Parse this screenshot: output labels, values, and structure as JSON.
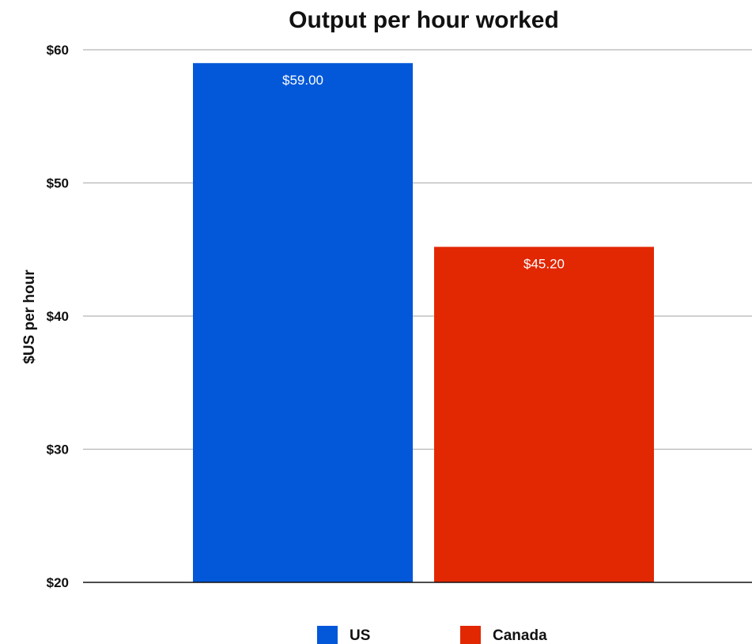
{
  "chart_data": {
    "type": "bar",
    "title": "Output per hour worked",
    "ylabel": "$US per hour",
    "xlabel": "",
    "ylim": [
      20,
      60
    ],
    "yticks": [
      20,
      30,
      40,
      50,
      60
    ],
    "ytick_labels": [
      "$20",
      "$30",
      "$40",
      "$50",
      "$60"
    ],
    "grid": true,
    "legend_position": "bottom",
    "series": [
      {
        "name": "US",
        "value": 59.0,
        "label": "$59.00",
        "color": "#0358d9"
      },
      {
        "name": "Canada",
        "value": 45.2,
        "label": "$45.20",
        "color": "#e22703"
      }
    ]
  }
}
